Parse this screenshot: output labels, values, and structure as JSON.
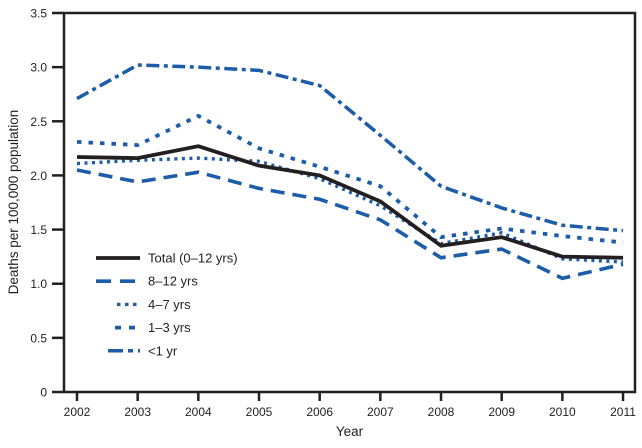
{
  "figure": {
    "xlabel": "Year",
    "ylabel": "Deaths per 100,000 population"
  },
  "chart_data": {
    "type": "line",
    "x": [
      2002,
      2003,
      2004,
      2005,
      2006,
      2007,
      2008,
      2009,
      2010,
      2011
    ],
    "xlabel": "Year",
    "ylabel": "Deaths per 100,000 population",
    "ylim": [
      0,
      3.5
    ],
    "yticks": [
      "0",
      "0.5",
      "1.0",
      "1.5",
      "2.0",
      "2.5",
      "3.0",
      "3.5"
    ],
    "xticks": [
      "2002",
      "2003",
      "2004",
      "2005",
      "2006",
      "2007",
      "2008",
      "2009",
      "2010",
      "2011"
    ],
    "grid": false,
    "legend_position": "lower-left-inside",
    "colors": {
      "line_black": "#231f20",
      "line_blue": "#1c5ca8"
    },
    "series": [
      {
        "name": "Total (0–12 yrs)",
        "style": "solid",
        "color": "#231f20",
        "values": [
          2.17,
          2.16,
          2.27,
          2.09,
          2.0,
          1.76,
          1.35,
          1.43,
          1.25,
          1.24
        ]
      },
      {
        "name": "8–12 yrs",
        "style": "long-dash",
        "color": "#1c5ca8",
        "values": [
          2.05,
          1.94,
          2.03,
          1.88,
          1.78,
          1.59,
          1.24,
          1.32,
          1.05,
          1.18
        ]
      },
      {
        "name": "4–7 yrs",
        "style": "dotted",
        "color": "#1c5ca8",
        "values": [
          2.11,
          2.14,
          2.16,
          2.13,
          1.97,
          1.72,
          1.37,
          1.47,
          1.23,
          1.2
        ]
      },
      {
        "name": "1–3 yrs",
        "style": "square-dash",
        "color": "#1c5ca8",
        "values": [
          2.31,
          2.28,
          2.55,
          2.25,
          2.08,
          1.9,
          1.43,
          1.51,
          1.44,
          1.38
        ]
      },
      {
        "name": "<1 yr",
        "style": "dash-dot",
        "color": "#1c5ca8",
        "values": [
          2.71,
          3.02,
          3.0,
          2.97,
          2.83,
          2.37,
          1.9,
          1.7,
          1.54,
          1.49
        ]
      }
    ]
  }
}
